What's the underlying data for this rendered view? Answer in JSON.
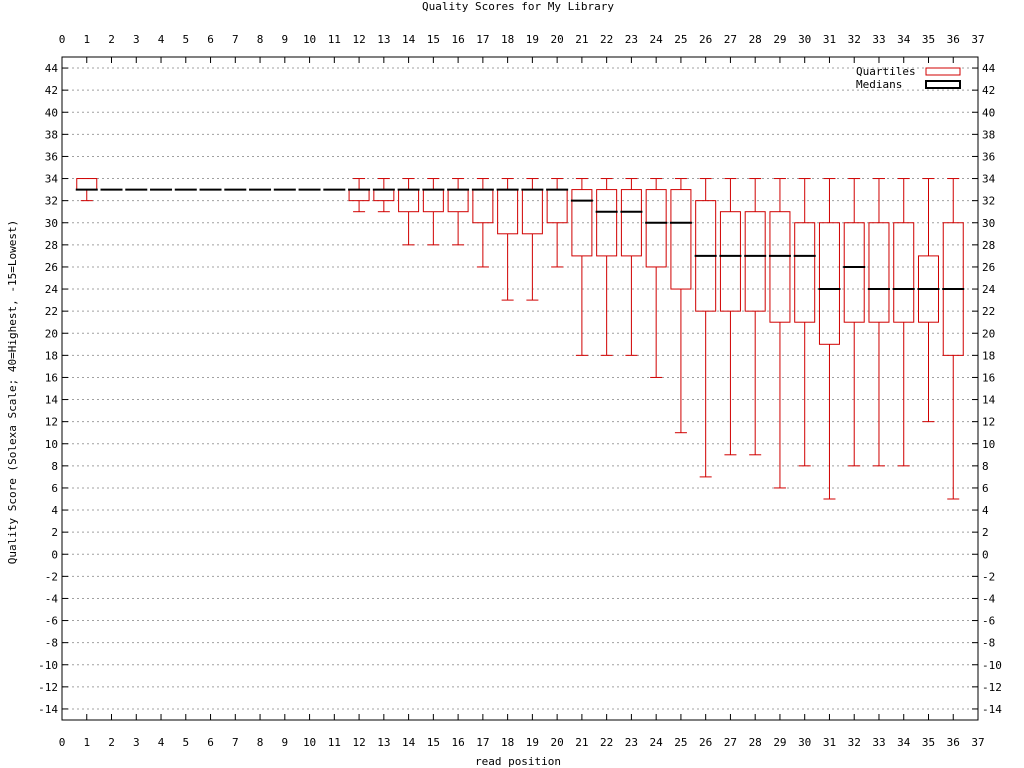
{
  "chart_data": {
    "type": "box",
    "title": "Quality Scores for My Library",
    "xlabel": "read position",
    "ylabel": "Quality Score (Solexa Scale; 40=Highest, -15=Lowest)",
    "xlim": [
      0,
      37
    ],
    "ylim": [
      -15,
      45
    ],
    "x_ticks": [
      0,
      1,
      2,
      3,
      4,
      5,
      6,
      7,
      8,
      9,
      10,
      11,
      12,
      13,
      14,
      15,
      16,
      17,
      18,
      19,
      20,
      21,
      22,
      23,
      24,
      25,
      26,
      27,
      28,
      29,
      30,
      31,
      32,
      33,
      34,
      35,
      36,
      37
    ],
    "y_ticks": [
      -14,
      -12,
      -10,
      -8,
      -6,
      -4,
      -2,
      0,
      2,
      4,
      6,
      8,
      10,
      12,
      14,
      16,
      18,
      20,
      22,
      24,
      26,
      28,
      30,
      32,
      34,
      36,
      38,
      40,
      42,
      44
    ],
    "grid": true,
    "legend": {
      "placement": "top-right",
      "entries": [
        {
          "label": "Quartiles",
          "color": "#d00000"
        },
        {
          "label": "Medians",
          "color": "#000000"
        }
      ]
    },
    "series": [
      {
        "x": 1,
        "min": 32,
        "q1": 33,
        "median": 33,
        "q3": 34,
        "max": 34
      },
      {
        "x": 2,
        "min": 33,
        "q1": 33,
        "median": 33,
        "q3": 33,
        "max": 33
      },
      {
        "x": 3,
        "min": 33,
        "q1": 33,
        "median": 33,
        "q3": 33,
        "max": 33
      },
      {
        "x": 4,
        "min": 33,
        "q1": 33,
        "median": 33,
        "q3": 33,
        "max": 33
      },
      {
        "x": 5,
        "min": 33,
        "q1": 33,
        "median": 33,
        "q3": 33,
        "max": 33
      },
      {
        "x": 6,
        "min": 33,
        "q1": 33,
        "median": 33,
        "q3": 33,
        "max": 33
      },
      {
        "x": 7,
        "min": 33,
        "q1": 33,
        "median": 33,
        "q3": 33,
        "max": 33
      },
      {
        "x": 8,
        "min": 33,
        "q1": 33,
        "median": 33,
        "q3": 33,
        "max": 33
      },
      {
        "x": 9,
        "min": 33,
        "q1": 33,
        "median": 33,
        "q3": 33,
        "max": 33
      },
      {
        "x": 10,
        "min": 33,
        "q1": 33,
        "median": 33,
        "q3": 33,
        "max": 33
      },
      {
        "x": 11,
        "min": 33,
        "q1": 33,
        "median": 33,
        "q3": 33,
        "max": 33
      },
      {
        "x": 12,
        "min": 31,
        "q1": 32,
        "median": 33,
        "q3": 33,
        "max": 34
      },
      {
        "x": 13,
        "min": 31,
        "q1": 32,
        "median": 33,
        "q3": 33,
        "max": 34
      },
      {
        "x": 14,
        "min": 28,
        "q1": 31,
        "median": 33,
        "q3": 33,
        "max": 34
      },
      {
        "x": 15,
        "min": 28,
        "q1": 31,
        "median": 33,
        "q3": 33,
        "max": 34
      },
      {
        "x": 16,
        "min": 28,
        "q1": 31,
        "median": 33,
        "q3": 33,
        "max": 34
      },
      {
        "x": 17,
        "min": 26,
        "q1": 30,
        "median": 33,
        "q3": 33,
        "max": 34
      },
      {
        "x": 18,
        "min": 23,
        "q1": 29,
        "median": 33,
        "q3": 33,
        "max": 34
      },
      {
        "x": 19,
        "min": 23,
        "q1": 29,
        "median": 33,
        "q3": 33,
        "max": 34
      },
      {
        "x": 20,
        "min": 26,
        "q1": 30,
        "median": 33,
        "q3": 33,
        "max": 34
      },
      {
        "x": 21,
        "min": 18,
        "q1": 27,
        "median": 32,
        "q3": 33,
        "max": 34
      },
      {
        "x": 22,
        "min": 18,
        "q1": 27,
        "median": 31,
        "q3": 33,
        "max": 34
      },
      {
        "x": 23,
        "min": 18,
        "q1": 27,
        "median": 31,
        "q3": 33,
        "max": 34
      },
      {
        "x": 24,
        "min": 16,
        "q1": 26,
        "median": 30,
        "q3": 33,
        "max": 34
      },
      {
        "x": 25,
        "min": 11,
        "q1": 24,
        "median": 30,
        "q3": 33,
        "max": 34
      },
      {
        "x": 26,
        "min": 7,
        "q1": 22,
        "median": 27,
        "q3": 32,
        "max": 34
      },
      {
        "x": 27,
        "min": 9,
        "q1": 22,
        "median": 27,
        "q3": 31,
        "max": 34
      },
      {
        "x": 28,
        "min": 9,
        "q1": 22,
        "median": 27,
        "q3": 31,
        "max": 34
      },
      {
        "x": 29,
        "min": 6,
        "q1": 21,
        "median": 27,
        "q3": 31,
        "max": 34
      },
      {
        "x": 30,
        "min": 8,
        "q1": 21,
        "median": 27,
        "q3": 30,
        "max": 34
      },
      {
        "x": 31,
        "min": 5,
        "q1": 19,
        "median": 24,
        "q3": 30,
        "max": 34
      },
      {
        "x": 32,
        "min": 8,
        "q1": 21,
        "median": 26,
        "q3": 30,
        "max": 34
      },
      {
        "x": 33,
        "min": 8,
        "q1": 21,
        "median": 24,
        "q3": 30,
        "max": 34
      },
      {
        "x": 34,
        "min": 8,
        "q1": 21,
        "median": 24,
        "q3": 30,
        "max": 34
      },
      {
        "x": 35,
        "min": 12,
        "q1": 21,
        "median": 24,
        "q3": 27,
        "max": 34
      },
      {
        "x": 36,
        "min": 5,
        "q1": 18,
        "median": 24,
        "q3": 30,
        "max": 34
      }
    ]
  }
}
